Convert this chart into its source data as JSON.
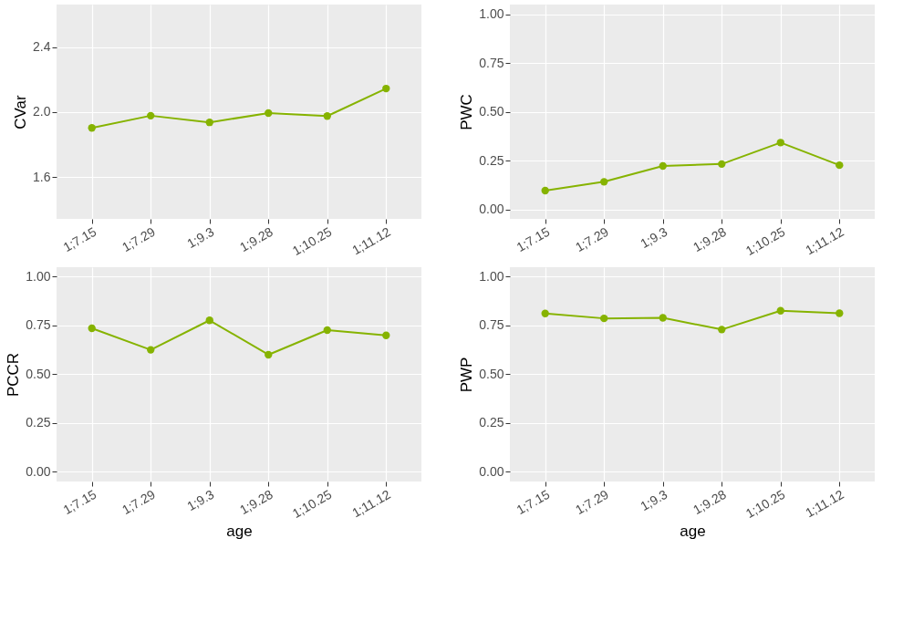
{
  "chart_data": [
    {
      "type": "line",
      "ylabel": "CVar",
      "categories": [
        "1;7.15",
        "1;7.29",
        "1;9.3",
        "1;9.28",
        "1;10.25",
        "1;11.12"
      ],
      "marker": "circle",
      "line_style": "solid",
      "grid": true,
      "series": [
        {
          "color": "#86b300",
          "values": [
            1.903,
            1.978,
            1.937,
            1.994,
            1.976,
            2.145
          ]
        }
      ],
      "ylim": [
        1.344,
        2.661
      ],
      "yticks": [
        {
          "value": 1.6,
          "label": "1.6"
        },
        {
          "value": 2.0,
          "label": "2.0"
        },
        {
          "value": 2.4,
          "label": "2.4"
        }
      ]
    },
    {
      "type": "line",
      "ylabel": "PWC",
      "categories": [
        "1;7.15",
        "1;7.29",
        "1;9.3",
        "1;9.28",
        "1;10.25",
        "1;11.12"
      ],
      "marker": "circle",
      "line_style": "solid",
      "grid": true,
      "series": [
        {
          "color": "#86b300",
          "values": [
            0.097,
            0.142,
            0.223,
            0.233,
            0.343,
            0.227
          ]
        }
      ],
      "ylim": [
        -0.048,
        1.05
      ],
      "yticks": [
        {
          "value": 0,
          "label": "0.00"
        },
        {
          "value": 0.25,
          "label": "0.25"
        },
        {
          "value": 0.5,
          "label": "0.50"
        },
        {
          "value": 0.75,
          "label": "0.75"
        },
        {
          "value": 1,
          "label": "1.00"
        }
      ]
    },
    {
      "type": "line",
      "xlabel": "age",
      "ylabel": "PCCR",
      "categories": [
        "1;7.15",
        "1;7.29",
        "1;9.3",
        "1;9.28",
        "1;10.25",
        "1;11.12"
      ],
      "marker": "circle",
      "line_style": "solid",
      "grid": true,
      "series": [
        {
          "color": "#86b300",
          "values": [
            0.734,
            0.624,
            0.775,
            0.599,
            0.725,
            0.698
          ]
        }
      ],
      "ylim": [
        -0.05,
        1.047
      ],
      "yticks": [
        {
          "value": 0,
          "label": "0.00"
        },
        {
          "value": 0.25,
          "label": "0.25"
        },
        {
          "value": 0.5,
          "label": "0.50"
        },
        {
          "value": 0.75,
          "label": "0.75"
        },
        {
          "value": 1,
          "label": "1.00"
        }
      ]
    },
    {
      "type": "line",
      "xlabel": "age",
      "ylabel": "PWP",
      "categories": [
        "1;7.15",
        "1;7.29",
        "1;9.3",
        "1;9.28",
        "1;10.25",
        "1;11.12"
      ],
      "marker": "circle",
      "line_style": "solid",
      "grid": true,
      "series": [
        {
          "color": "#86b300",
          "values": [
            0.81,
            0.785,
            0.788,
            0.728,
            0.824,
            0.811
          ]
        }
      ],
      "ylim": [
        -0.05,
        1.047
      ],
      "yticks": [
        {
          "value": 0,
          "label": "0.00"
        },
        {
          "value": 0.25,
          "label": "0.25"
        },
        {
          "value": 0.5,
          "label": "0.50"
        },
        {
          "value": 0.75,
          "label": "0.75"
        },
        {
          "value": 1,
          "label": "1.00"
        }
      ]
    }
  ]
}
